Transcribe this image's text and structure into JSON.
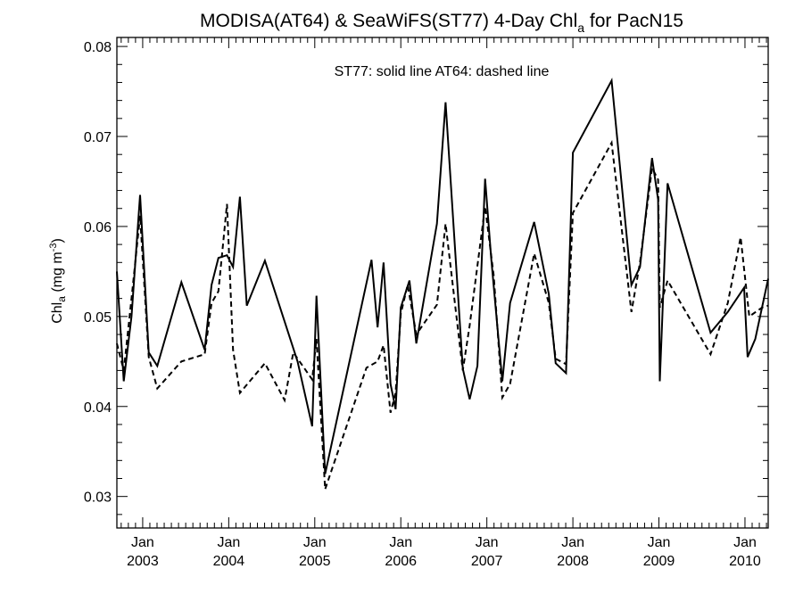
{
  "chart_data": {
    "type": "line",
    "title": {
      "main": "MODISA(AT64) & SeaWiFS(ST77) 4-Day Chl",
      "sub": "a",
      "suffix": " for PacN15"
    },
    "ylabel": {
      "main": "Chl",
      "sub": "a",
      "unit_open": " (mg m",
      "sup": "-3",
      "unit_close": ")"
    },
    "xlabel": "",
    "legend_note": "ST77: solid line   AT64: dashed line",
    "ylim": [
      0.0265,
      0.081
    ],
    "xlim": [
      2002.7,
      2010.27
    ],
    "yticks": [
      "0.03",
      "0.04",
      "0.05",
      "0.06",
      "0.07",
      "0.08"
    ],
    "xticks": [
      {
        "month": "Jan",
        "year": "2003"
      },
      {
        "month": "Jan",
        "year": "2004"
      },
      {
        "month": "Jan",
        "year": "2005"
      },
      {
        "month": "Jan",
        "year": "2006"
      },
      {
        "month": "Jan",
        "year": "2007"
      },
      {
        "month": "Jan",
        "year": "2008"
      },
      {
        "month": "Jan",
        "year": "2009"
      },
      {
        "month": "Jan",
        "year": "2010"
      }
    ],
    "grid": false,
    "series": [
      {
        "name": "ST77",
        "style": "solid",
        "color": "#000000",
        "x": [
          2002.7,
          2002.78,
          2002.87,
          2002.97,
          2003.07,
          2003.17,
          2003.45,
          2003.72,
          2003.8,
          2003.88,
          2003.98,
          2004.05,
          2004.13,
          2004.21,
          2004.42,
          2004.8,
          2004.97,
          2005.02,
          2005.12,
          2005.66,
          2005.73,
          2005.8,
          2005.88,
          2005.94,
          2006.0,
          2006.1,
          2006.18,
          2006.42,
          2006.52,
          2006.72,
          2006.8,
          2006.89,
          2006.98,
          2007.05,
          2007.18,
          2007.27,
          2007.55,
          2007.72,
          2007.8,
          2007.92,
          2008.0,
          2008.45,
          2008.68,
          2008.78,
          2008.92,
          2008.99,
          2009.01,
          2009.1,
          2009.6,
          2009.8,
          2009.99,
          2010.03,
          2010.12,
          2010.27
        ],
        "y": [
          0.055,
          0.0428,
          0.05,
          0.0635,
          0.046,
          0.0445,
          0.0538,
          0.0463,
          0.0535,
          0.0565,
          0.0568,
          0.0555,
          0.0633,
          0.0512,
          0.0562,
          0.045,
          0.0378,
          0.0523,
          0.0325,
          0.0563,
          0.0488,
          0.056,
          0.0425,
          0.0397,
          0.051,
          0.054,
          0.047,
          0.0603,
          0.0738,
          0.0442,
          0.0408,
          0.0445,
          0.0653,
          0.0565,
          0.0428,
          0.0515,
          0.0605,
          0.0525,
          0.0448,
          0.0437,
          0.0682,
          0.0762,
          0.0535,
          0.0555,
          0.0676,
          0.063,
          0.0428,
          0.0648,
          0.0482,
          0.0505,
          0.0532,
          0.0455,
          0.0475,
          0.0542
        ]
      },
      {
        "name": "AT64",
        "style": "dashed",
        "color": "#000000",
        "x": [
          2002.7,
          2002.78,
          2002.87,
          2002.97,
          2003.07,
          2003.17,
          2003.45,
          2003.72,
          2003.8,
          2003.88,
          2003.98,
          2004.05,
          2004.13,
          2004.42,
          2004.65,
          2004.75,
          2004.97,
          2005.02,
          2005.12,
          2005.6,
          2005.73,
          2005.8,
          2005.88,
          2005.94,
          2006.0,
          2006.08,
          2006.18,
          2006.42,
          2006.52,
          2006.72,
          2006.8,
          2006.98,
          2007.08,
          2007.18,
          2007.27,
          2007.55,
          2007.72,
          2007.8,
          2007.92,
          2008.0,
          2008.45,
          2008.68,
          2008.78,
          2008.92,
          2008.99,
          2009.01,
          2009.1,
          2009.6,
          2009.8,
          2009.95,
          2010.05,
          2010.2,
          2010.27
        ],
        "y": [
          0.047,
          0.044,
          0.052,
          0.0612,
          0.0455,
          0.042,
          0.045,
          0.0458,
          0.0515,
          0.0528,
          0.0625,
          0.0463,
          0.0415,
          0.0448,
          0.0407,
          0.046,
          0.043,
          0.0475,
          0.0308,
          0.0443,
          0.045,
          0.0468,
          0.0393,
          0.0415,
          0.0503,
          0.0535,
          0.048,
          0.0513,
          0.0603,
          0.044,
          0.049,
          0.0622,
          0.0545,
          0.041,
          0.0425,
          0.057,
          0.0515,
          0.0453,
          0.0447,
          0.0615,
          0.0693,
          0.0505,
          0.056,
          0.0665,
          0.0652,
          0.051,
          0.054,
          0.0458,
          0.0515,
          0.0588,
          0.05,
          0.051,
          0.0512
        ]
      }
    ]
  }
}
